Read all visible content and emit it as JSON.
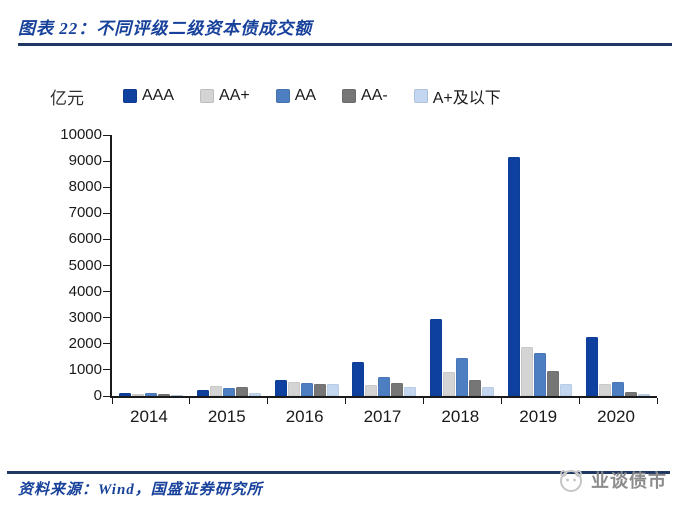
{
  "header": {
    "title": "图表 22：不同评级二级资本债成交额"
  },
  "footer": {
    "source": "资料来源：Wind，国盛证券研究所",
    "watermark": "业谈债市"
  },
  "colors": {
    "navy_text": "#17419A",
    "navy_line": "#1F3864",
    "axis": "#1a1a1a",
    "watermark_gray": "#8C8C8C"
  },
  "chart_data": {
    "type": "bar",
    "title": "不同评级二级资本债成交额",
    "unit_label": "亿元",
    "categories": [
      "2014",
      "2015",
      "2016",
      "2017",
      "2018",
      "2019",
      "2020"
    ],
    "series": [
      {
        "name": "AAA",
        "color": "#0E419F",
        "values": [
          120,
          230,
          600,
          1290,
          2950,
          9150,
          2280
        ]
      },
      {
        "name": "AA+",
        "color": "#D4D4D4",
        "values": [
          90,
          380,
          550,
          430,
          930,
          1870,
          470
        ]
      },
      {
        "name": "AA",
        "color": "#4D7EC2",
        "values": [
          110,
          310,
          510,
          720,
          1450,
          1640,
          530
        ]
      },
      {
        "name": "AA-",
        "color": "#767676",
        "values": [
          70,
          360,
          460,
          490,
          620,
          950,
          160
        ]
      },
      {
        "name": "A+及以下",
        "color": "#C3D7F1",
        "values": [
          40,
          130,
          450,
          340,
          330,
          450,
          90
        ]
      }
    ],
    "ylim": [
      0,
      10000
    ],
    "ytick_step": 1000,
    "grid": false,
    "legend_position": "top"
  }
}
